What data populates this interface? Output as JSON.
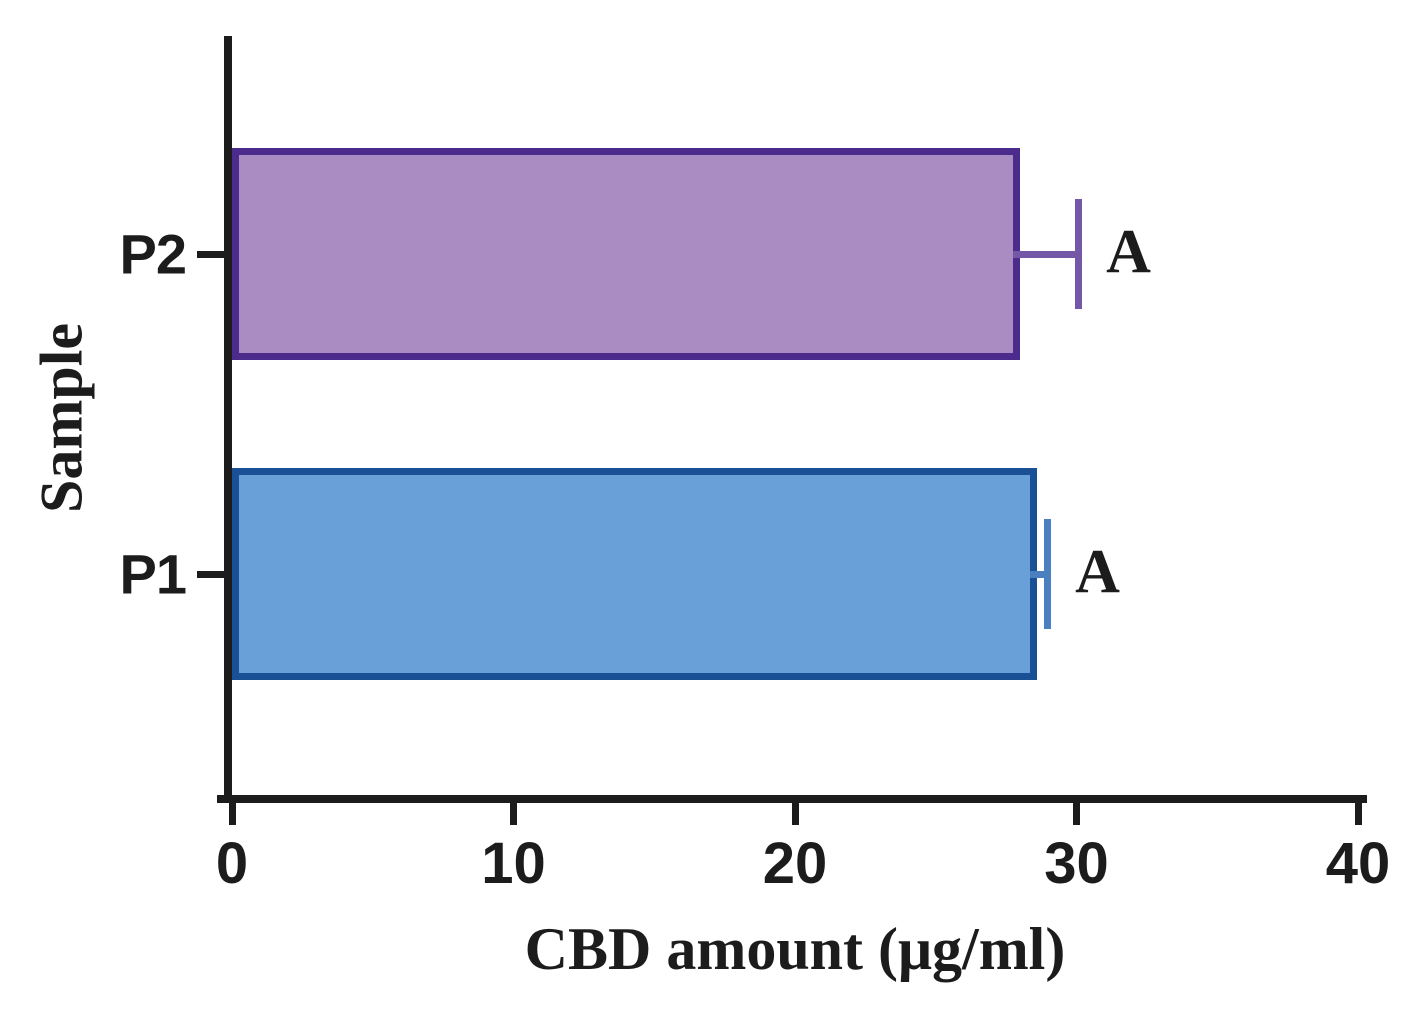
{
  "chart_data": {
    "type": "bar",
    "orientation": "horizontal",
    "title": "",
    "xlabel": "CBD amount (μg/ml)",
    "ylabel": "Sample",
    "categories": [
      "P2",
      "P1"
    ],
    "values": [
      28.0,
      28.6
    ],
    "errors": [
      2.2,
      0.5
    ],
    "annotations": [
      "A",
      "A"
    ],
    "bar_fill_colors": [
      "#ab8cc2",
      "#6aa0d8"
    ],
    "bar_border_colors": [
      "#4b2b8c",
      "#1a5096"
    ],
    "error_bar_colors": [
      "#7557a8",
      "#4b80c0"
    ],
    "xlim": [
      0,
      40
    ],
    "xticks": [
      "0",
      "10",
      "20",
      "30",
      "40"
    ],
    "grid": false,
    "legend": false,
    "axis_color": "#1c1c1c",
    "text_color": "#1c1c1c"
  }
}
